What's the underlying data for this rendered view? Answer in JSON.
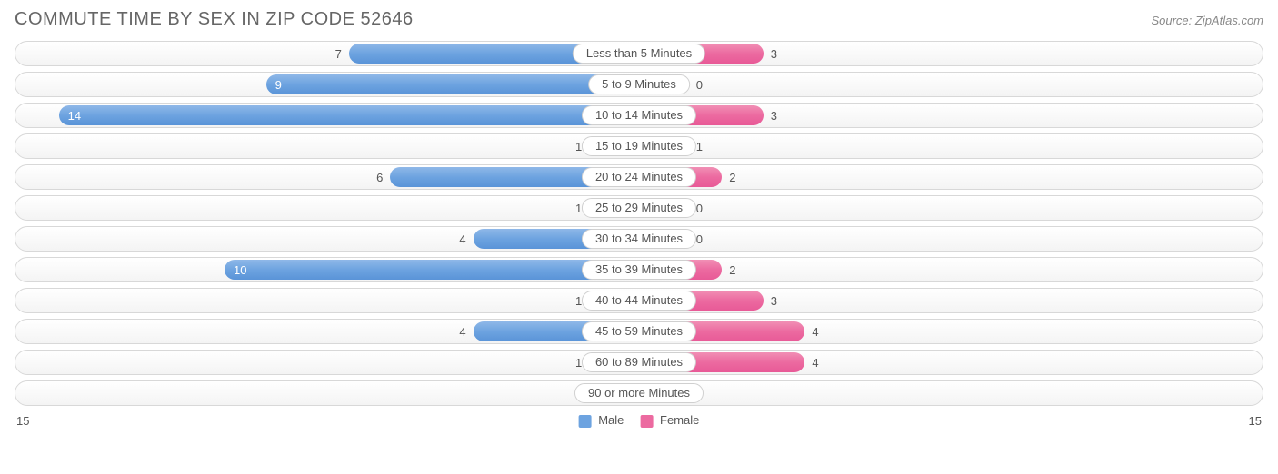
{
  "title": "Commute Time By Sex in Zip Code 52646",
  "source": "Source: ZipAtlas.com",
  "axis_max": 15,
  "axis_left_label": "15",
  "axis_right_label": "15",
  "legend": {
    "male": "Male",
    "female": "Female"
  },
  "colors": {
    "male_bar": "#6da3e0",
    "female_bar": "#ec6aa0",
    "track_border": "#d8d8d8",
    "text": "#555555",
    "title": "#666666",
    "bg": "#ffffff"
  },
  "label_threshold_inside": 8,
  "min_bar_units": 1.2,
  "rows": [
    {
      "label": "Less than 5 Minutes",
      "male": 7,
      "female": 3
    },
    {
      "label": "5 to 9 Minutes",
      "male": 9,
      "female": 0
    },
    {
      "label": "10 to 14 Minutes",
      "male": 14,
      "female": 3
    },
    {
      "label": "15 to 19 Minutes",
      "male": 1,
      "female": 1
    },
    {
      "label": "20 to 24 Minutes",
      "male": 6,
      "female": 2
    },
    {
      "label": "25 to 29 Minutes",
      "male": 1,
      "female": 0
    },
    {
      "label": "30 to 34 Minutes",
      "male": 4,
      "female": 0
    },
    {
      "label": "35 to 39 Minutes",
      "male": 10,
      "female": 2
    },
    {
      "label": "40 to 44 Minutes",
      "male": 1,
      "female": 3
    },
    {
      "label": "45 to 59 Minutes",
      "male": 4,
      "female": 4
    },
    {
      "label": "60 to 89 Minutes",
      "male": 1,
      "female": 4
    },
    {
      "label": "90 or more Minutes",
      "male": 0,
      "female": 0
    }
  ]
}
